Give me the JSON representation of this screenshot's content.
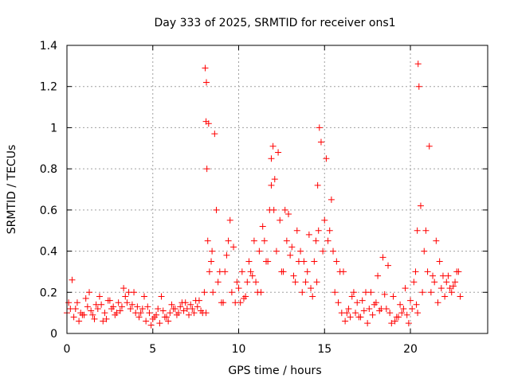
{
  "chart_data": {
    "type": "scatter",
    "title": "Day 333 of 2025, SRMTID for receiver ons1",
    "xlabel": "GPS time / hours",
    "ylabel": "SRMTID / TECUs",
    "xlim": [
      0,
      24.5
    ],
    "ylim": [
      0,
      1.4
    ],
    "xticks": [
      0,
      5,
      10,
      15,
      20
    ],
    "yticks": [
      0,
      0.2,
      0.4,
      0.6,
      0.8,
      1,
      1.2,
      1.4
    ],
    "xtick_labels": [
      "0",
      "5",
      "10",
      "15",
      "20"
    ],
    "ytick_labels": [
      "0",
      "0.2",
      "0.4",
      "0.6",
      "0.8",
      "1",
      "1.2",
      "1.4"
    ],
    "grid": true,
    "marker": "+",
    "marker_color": "#ff0000",
    "series": [
      {
        "name": "SRMTID",
        "x": [
          0.0,
          0.2,
          0.4,
          0.6,
          0.8,
          1.0,
          1.2,
          1.4,
          1.6,
          1.8,
          2.0,
          2.2,
          2.4,
          2.6,
          2.8,
          3.0,
          3.2,
          3.4,
          3.6,
          3.8,
          4.0,
          4.2,
          4.4,
          4.6,
          4.8,
          5.0,
          5.2,
          5.4,
          5.6,
          5.8,
          6.0,
          6.2,
          6.4,
          6.6,
          6.8,
          7.0,
          7.2,
          7.4,
          7.6,
          7.8,
          8.0,
          8.05,
          8.1,
          8.15,
          8.2,
          8.3,
          8.4,
          8.5,
          8.6,
          8.8,
          9.0,
          9.2,
          9.4,
          9.6,
          9.8,
          10.0,
          10.2,
          10.4,
          10.6,
          10.8,
          11.0,
          11.2,
          11.4,
          11.6,
          11.8,
          11.9,
          12.0,
          12.1,
          12.2,
          12.4,
          12.6,
          12.8,
          13.0,
          13.2,
          13.4,
          13.6,
          13.8,
          14.0,
          14.2,
          14.4,
          14.5,
          14.6,
          14.7,
          14.8,
          15.0,
          15.2,
          15.4,
          15.6,
          15.8,
          16.0,
          16.2,
          16.4,
          16.6,
          16.8,
          17.0,
          17.2,
          17.4,
          17.6,
          17.8,
          18.0,
          18.2,
          18.4,
          18.6,
          18.8,
          19.0,
          19.2,
          19.4,
          19.6,
          19.8,
          20.0,
          20.2,
          20.3,
          20.4,
          20.45,
          20.5,
          20.6,
          20.8,
          21.0,
          21.2,
          21.4,
          21.6,
          21.8,
          22.0,
          22.2,
          22.4,
          22.6,
          22.8,
          0.1,
          0.5,
          0.9,
          1.3,
          1.7,
          2.1,
          2.5,
          2.9,
          3.3,
          3.7,
          4.1,
          4.5,
          4.9,
          5.3,
          5.7,
          6.1,
          6.5,
          6.9,
          7.3,
          7.7,
          8.1,
          8.25,
          8.7,
          9.1,
          9.5,
          9.9,
          10.3,
          10.7,
          11.1,
          11.5,
          11.9,
          12.3,
          12.7,
          13.1,
          13.5,
          13.9,
          14.3,
          14.65,
          15.1,
          15.5,
          15.9,
          16.3,
          16.7,
          17.1,
          17.5,
          17.9,
          18.3,
          18.7,
          19.1,
          19.5,
          19.9,
          20.35,
          20.7,
          21.1,
          21.5,
          21.9,
          22.3,
          22.7,
          0.3,
          0.7,
          1.1,
          1.5,
          1.9,
          2.3,
          2.7,
          3.1,
          3.5,
          3.9,
          4.3,
          4.7,
          5.1,
          5.5,
          5.9,
          6.3,
          6.7,
          7.1,
          7.5,
          7.9,
          8.12,
          8.45,
          8.9,
          9.3,
          9.7,
          10.1,
          10.5,
          10.9,
          11.3,
          11.7,
          12.05,
          12.5,
          12.9,
          13.3,
          13.7,
          14.1,
          14.55,
          14.9,
          15.3,
          15.7,
          16.1,
          16.5,
          16.9,
          17.3,
          17.7,
          18.1,
          18.5,
          18.9,
          19.3,
          19.7,
          20.1,
          20.42,
          20.9,
          21.3,
          21.7,
          22.1,
          22.5,
          22.9
        ],
        "y": [
          0.1,
          0.12,
          0.08,
          0.15,
          0.1,
          0.09,
          0.13,
          0.11,
          0.07,
          0.12,
          0.14,
          0.1,
          0.16,
          0.12,
          0.09,
          0.15,
          0.13,
          0.18,
          0.2,
          0.14,
          0.1,
          0.08,
          0.12,
          0.06,
          0.1,
          0.07,
          0.09,
          0.05,
          0.11,
          0.08,
          0.1,
          0.12,
          0.09,
          0.13,
          0.11,
          0.12,
          0.14,
          0.1,
          0.13,
          0.11,
          0.2,
          1.29,
          1.03,
          0.8,
          0.45,
          0.3,
          0.35,
          0.2,
          0.97,
          0.25,
          0.15,
          0.3,
          0.45,
          0.2,
          0.15,
          0.22,
          0.3,
          0.18,
          0.35,
          0.28,
          0.25,
          0.4,
          0.52,
          0.35,
          0.6,
          0.85,
          0.91,
          0.75,
          0.4,
          0.55,
          0.3,
          0.45,
          0.38,
          0.28,
          0.5,
          0.4,
          0.35,
          0.3,
          0.22,
          0.35,
          0.45,
          0.72,
          1.0,
          0.93,
          0.55,
          0.45,
          0.65,
          0.2,
          0.15,
          0.1,
          0.06,
          0.12,
          0.18,
          0.1,
          0.08,
          0.16,
          0.2,
          0.12,
          0.09,
          0.15,
          0.11,
          0.37,
          0.12,
          0.1,
          0.18,
          0.08,
          0.14,
          0.12,
          0.09,
          0.16,
          0.25,
          0.3,
          0.5,
          1.31,
          1.2,
          0.62,
          0.4,
          0.3,
          0.2,
          0.25,
          0.15,
          0.22,
          0.18,
          0.28,
          0.2,
          0.25,
          0.3,
          0.15,
          0.12,
          0.09,
          0.2,
          0.14,
          0.06,
          0.16,
          0.1,
          0.22,
          0.12,
          0.13,
          0.18,
          0.04,
          0.12,
          0.08,
          0.14,
          0.1,
          0.15,
          0.12,
          0.16,
          0.1,
          1.02,
          0.6,
          0.15,
          0.55,
          0.25,
          0.17,
          0.3,
          0.2,
          0.45,
          0.72,
          0.88,
          0.6,
          0.42,
          0.35,
          0.25,
          0.18,
          0.5,
          0.85,
          0.4,
          0.3,
          0.1,
          0.2,
          0.08,
          0.05,
          0.14,
          0.12,
          0.33,
          0.06,
          0.1,
          0.05,
          0.14,
          0.2,
          0.91,
          0.45,
          0.28,
          0.22,
          0.3,
          0.26,
          0.06,
          0.17,
          0.09,
          0.18,
          0.07,
          0.13,
          0.11,
          0.15,
          0.2,
          0.1,
          0.13,
          0.08,
          0.18,
          0.06,
          0.12,
          0.15,
          0.09,
          0.16,
          0.1,
          1.22,
          0.4,
          0.3,
          0.38,
          0.42,
          0.15,
          0.25,
          0.45,
          0.2,
          0.35,
          0.6,
          0.3,
          0.58,
          0.25,
          0.2,
          0.48,
          0.25,
          0.4,
          0.5,
          0.35,
          0.3,
          0.08,
          0.15,
          0.11,
          0.2,
          0.28,
          0.19,
          0.05,
          0.08,
          0.22,
          0.12,
          0.1,
          0.5,
          0.28,
          0.35,
          0.25,
          0.23,
          0.18
        ]
      }
    ]
  }
}
